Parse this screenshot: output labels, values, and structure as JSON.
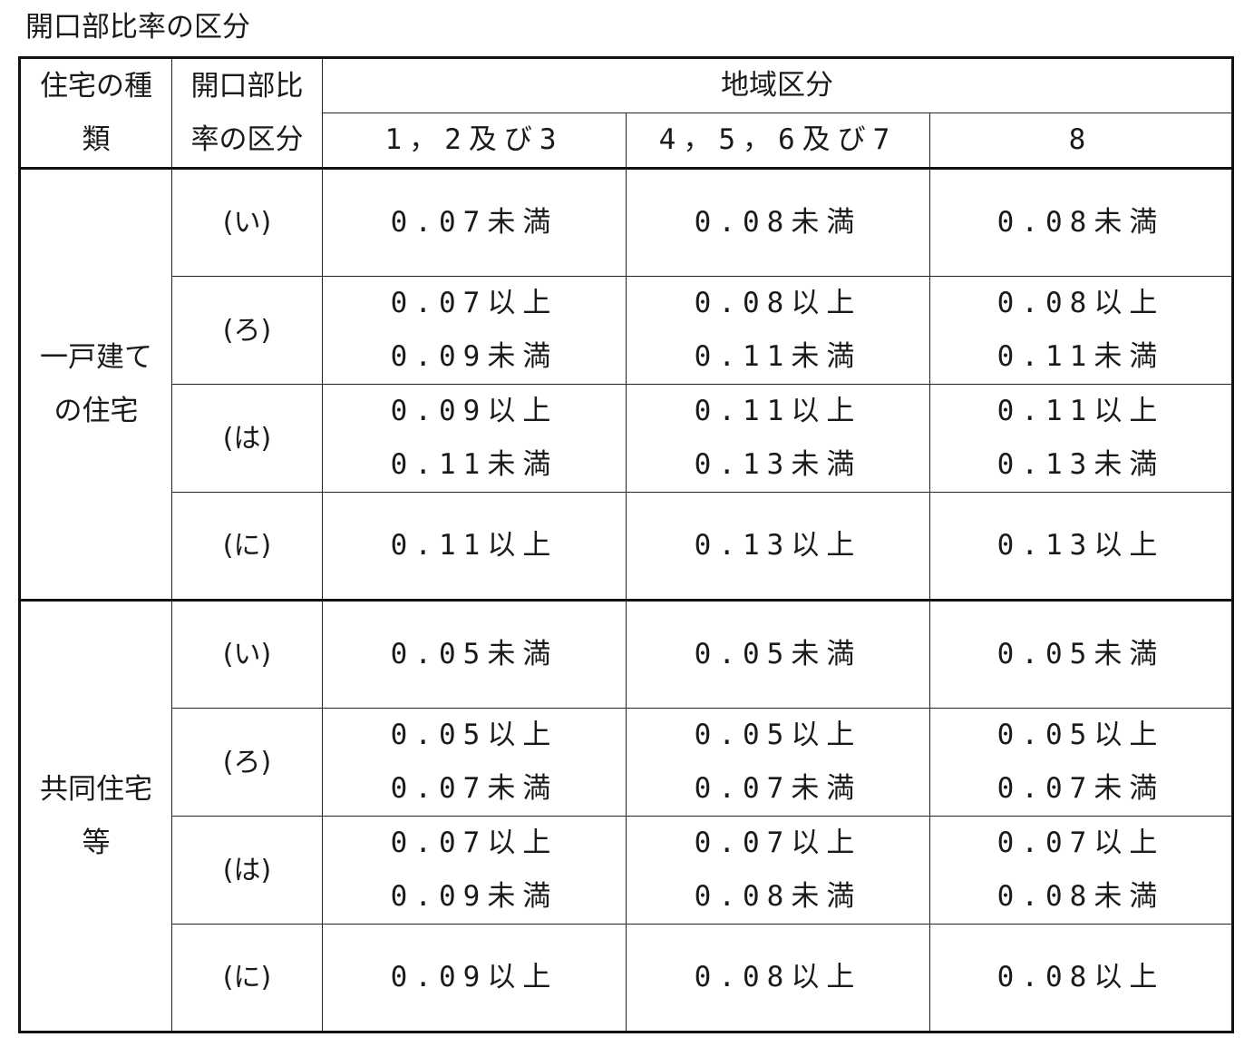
{
  "caption": "開口部比率の区分",
  "header": {
    "col_type_line1": "住宅の種",
    "col_type_line2": "類",
    "col_ratio_line1": "開口部比",
    "col_ratio_line2": "率の区分",
    "region_group": "地域区分",
    "region_a": "1，2及び3",
    "region_b": "4，5，6及び7",
    "region_c": "8"
  },
  "groups": [
    {
      "type_line1": "一戸建て",
      "type_line2": "の住宅",
      "rows": [
        {
          "kubun": "(い)",
          "a1": "0.07未満",
          "a2": "",
          "b1": "0.08未満",
          "b2": "",
          "c1": "0.08未満",
          "c2": ""
        },
        {
          "kubun": "(ろ)",
          "a1": "0.07以上",
          "a2": "0.09未満",
          "b1": "0.08以上",
          "b2": "0.11未満",
          "c1": "0.08以上",
          "c2": "0.11未満"
        },
        {
          "kubun": "(は)",
          "a1": "0.09以上",
          "a2": "0.11未満",
          "b1": "0.11以上",
          "b2": "0.13未満",
          "c1": "0.11以上",
          "c2": "0.13未満"
        },
        {
          "kubun": "(に)",
          "a1": "0.11以上",
          "a2": "",
          "b1": "0.13以上",
          "b2": "",
          "c1": "0.13以上",
          "c2": ""
        }
      ]
    },
    {
      "type_line1": "共同住宅",
      "type_line2": "等",
      "rows": [
        {
          "kubun": "(い)",
          "a1": "0.05未満",
          "a2": "",
          "b1": "0.05未満",
          "b2": "",
          "c1": "0.05未満",
          "c2": ""
        },
        {
          "kubun": "(ろ)",
          "a1": "0.05以上",
          "a2": "0.07未満",
          "b1": "0.05以上",
          "b2": "0.07未満",
          "c1": "0.05以上",
          "c2": "0.07未満"
        },
        {
          "kubun": "(は)",
          "a1": "0.07以上",
          "a2": "0.09未満",
          "b1": "0.07以上",
          "b2": "0.08未満",
          "c1": "0.07以上",
          "c2": "0.08未満"
        },
        {
          "kubun": "(に)",
          "a1": "0.09以上",
          "a2": "",
          "b1": "0.08以上",
          "b2": "",
          "c1": "0.08以上",
          "c2": ""
        }
      ]
    }
  ]
}
